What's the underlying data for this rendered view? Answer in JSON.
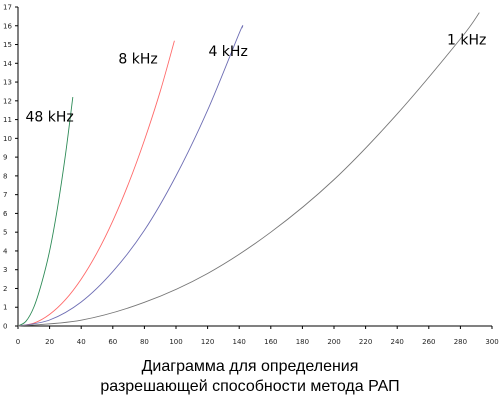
{
  "chart_data": {
    "type": "line",
    "xlim": [
      0,
      300
    ],
    "ylim": [
      0,
      17
    ],
    "x_ticks": [
      0,
      20,
      40,
      60,
      80,
      100,
      120,
      140,
      160,
      180,
      200,
      220,
      240,
      260,
      280,
      300
    ],
    "y_ticks": [
      0,
      1,
      2,
      3,
      4,
      5,
      6,
      7,
      8,
      9,
      10,
      11,
      12,
      13,
      14,
      15,
      16,
      17
    ],
    "grid": false,
    "legend": "none",
    "caption": [
      "Диаграмма для определения",
      "разрешающей способности метода РАП"
    ],
    "series": [
      {
        "name": "48 kHz",
        "color": "#2e8b57",
        "label_at": [
          20,
          10.9
        ],
        "x": [
          0,
          5,
          10,
          15,
          20,
          25,
          30,
          34.7
        ],
        "y": [
          0,
          0.25,
          1.0,
          2.3,
          4.0,
          6.3,
          9.1,
          12.2
        ]
      },
      {
        "name": "8 kHz",
        "color": "#ff6a6a",
        "label_at": [
          76,
          14.0
        ],
        "x": [
          0,
          10,
          20,
          30,
          40,
          50,
          60,
          70,
          80,
          90,
          99
        ],
        "y": [
          0,
          0.15,
          0.62,
          1.4,
          2.5,
          3.9,
          5.6,
          7.6,
          9.9,
          12.5,
          15.2
        ]
      },
      {
        "name": "4 kHz",
        "color": "#6e6eb4",
        "label_at": [
          133,
          14.4
        ],
        "x": [
          0,
          20,
          40,
          60,
          80,
          100,
          120,
          140,
          142
        ],
        "y": [
          0,
          0.32,
          1.28,
          2.9,
          5.1,
          8.0,
          11.5,
          15.6,
          15.9
        ]
      },
      {
        "name": "1 kHz",
        "color": "#777777",
        "label_at": [
          284,
          15.0
        ],
        "x": [
          0,
          40,
          80,
          120,
          160,
          200,
          240,
          280,
          292
        ],
        "y": [
          0,
          0.31,
          1.26,
          2.8,
          5.0,
          7.8,
          11.3,
          15.3,
          16.7
        ]
      }
    ]
  }
}
